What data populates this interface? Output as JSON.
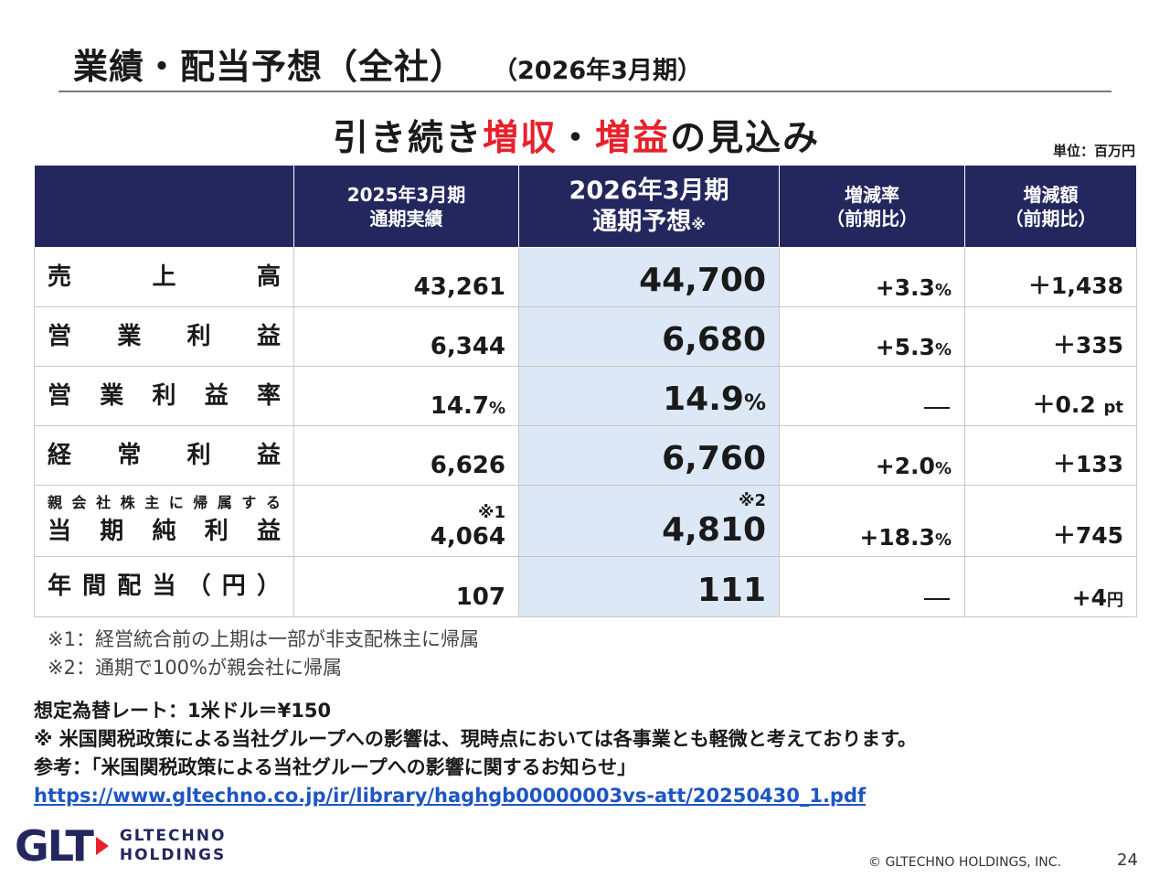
{
  "header": {
    "title": "業績・配当予想（全社）",
    "subtitle": "（2026年3月期）"
  },
  "headline": {
    "part1": "引き続き",
    "emph1": "増収",
    "sep": "・",
    "emph2": "増益",
    "part2": "の見込み"
  },
  "unit_label": "単位：百万円",
  "table": {
    "columns": {
      "prev_line1": "2025年3月期",
      "prev_line2": "通期実績",
      "fc_line1": "2026年3月期",
      "fc_line2": "通期予想",
      "fc_mark": "※",
      "rate_line1": "増減率",
      "rate_line2": "（前期比）",
      "amount_line1": "増減額",
      "amount_line2": "（前期比）"
    },
    "rows": [
      {
        "label": [
          "売",
          "上",
          "高"
        ],
        "prev": "43,261",
        "forecast": "44,700",
        "rate": "+3.3",
        "rate_unit": "%",
        "amount": "＋1,438"
      },
      {
        "label": [
          "営",
          "業",
          "利",
          "益"
        ],
        "prev": "6,344",
        "forecast": "6,680",
        "rate": "+5.3",
        "rate_unit": "%",
        "amount": "＋335"
      },
      {
        "label": [
          "営",
          "業",
          "利",
          "益",
          "率"
        ],
        "prev": "14.7",
        "prev_unit": "%",
        "forecast": "14.9",
        "forecast_unit": "%",
        "rate": "—",
        "amount": "＋0.2",
        "amount_unit": "pt"
      },
      {
        "label": [
          "経",
          "常",
          "利",
          "益"
        ],
        "prev": "6,626",
        "forecast": "6,760",
        "rate": "+2.0",
        "rate_unit": "%",
        "amount": "＋133"
      },
      {
        "label_small": [
          "親",
          "会",
          "社",
          "株",
          "主",
          "に",
          "帰",
          "属",
          "す",
          "る"
        ],
        "label": [
          "当",
          "期",
          "純",
          "利",
          "益"
        ],
        "prev_mark": "※1",
        "prev": "4,064",
        "forecast_mark": "※2",
        "forecast": "4,810",
        "rate": "+18.3",
        "rate_unit": "%",
        "amount": "＋745"
      },
      {
        "label": [
          "年",
          "間",
          "配",
          "当",
          "（",
          "円",
          "）"
        ],
        "prev": "107",
        "forecast": "111",
        "rate": "—",
        "amount": "+4",
        "amount_unit": "円"
      }
    ]
  },
  "notes": [
    "※1：経営統合前の上期は一部が非支配株主に帰属",
    "※2：通期で100%が親会社に帰属"
  ],
  "assumptions": {
    "fx": "想定為替レート：1米ドル＝¥150",
    "tariff": "※ 米国関税政策による当社グループへの影響は、現時点においては各事業とも軽微と考えております。",
    "reference": "参考：「米国関税政策による当社グループへの影響に関するお知らせ」",
    "url": "https://www.gltechno.co.jp/ir/library/haghgb00000003vs-att/20250430_1.pdf"
  },
  "footer": {
    "logo_mark": "GLT",
    "logo_line1": "GLTECHNO",
    "logo_line2": "HOLDINGS",
    "copyright": "© GLTECHNO HOLDINGS, INC.",
    "page_number": "24"
  },
  "colors": {
    "navy": "#23275e",
    "accent_red": "#e8202a",
    "forecast_fill": "#dce8f5",
    "link": "#1e56c2"
  }
}
